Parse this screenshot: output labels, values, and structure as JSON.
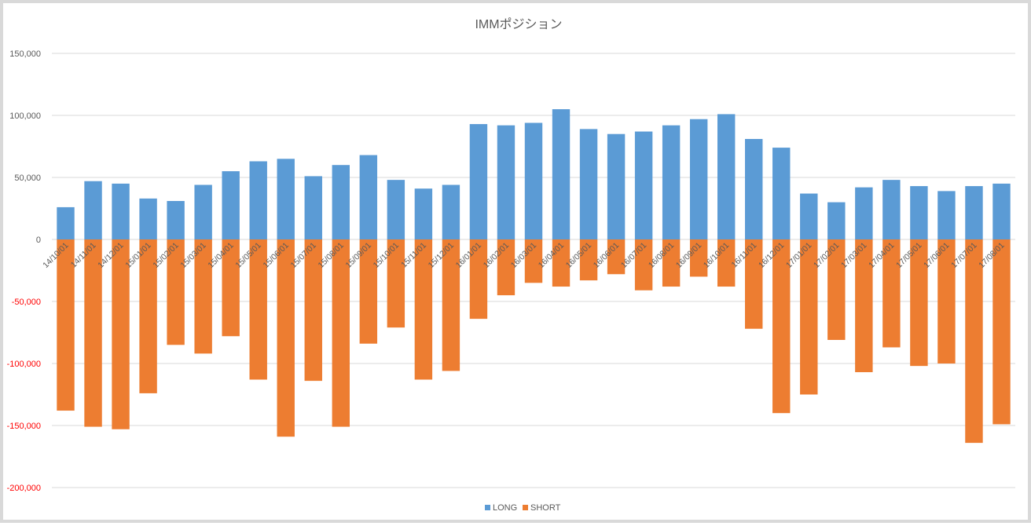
{
  "chart_data": {
    "type": "bar",
    "title": "IMMポジション",
    "xlabel": "",
    "ylabel": "",
    "ylim": [
      -200000,
      150000
    ],
    "yticks": [
      150000,
      100000,
      50000,
      0,
      -50000,
      -100000,
      -150000,
      -200000
    ],
    "ytick_labels": [
      "150,000",
      "100,000",
      "50,000",
      "0",
      "-50,000",
      "-100,000",
      "-150,000",
      "-200,000"
    ],
    "negative_tick_color": "#ff0000",
    "grid": true,
    "legend_position": "bottom",
    "categories": [
      "14/10/01",
      "14/11/01",
      "14/12/01",
      "15/01/01",
      "15/02/01",
      "15/03/01",
      "15/04/01",
      "15/05/01",
      "15/06/01",
      "15/07/01",
      "15/08/01",
      "15/09/01",
      "15/10/01",
      "15/11/01",
      "15/12/01",
      "16/01/01",
      "16/02/01",
      "16/03/01",
      "16/04/01",
      "16/05/01",
      "16/06/01",
      "16/07/01",
      "16/08/01",
      "16/09/01",
      "16/10/01",
      "16/11/01",
      "16/12/01",
      "17/01/01",
      "17/02/01",
      "17/03/01",
      "17/04/01",
      "17/05/01",
      "17/06/01",
      "17/07/01",
      "17/08/01"
    ],
    "series": [
      {
        "name": "LONG",
        "color": "#5b9bd5",
        "values": [
          26000,
          47000,
          45000,
          33000,
          31000,
          44000,
          55000,
          63000,
          65000,
          51000,
          60000,
          68000,
          48000,
          41000,
          44000,
          93000,
          92000,
          94000,
          105000,
          89000,
          85000,
          87000,
          92000,
          97000,
          101000,
          81000,
          74000,
          37000,
          30000,
          42000,
          48000,
          43000,
          39000,
          43000,
          45000
        ]
      },
      {
        "name": "SHORT",
        "color": "#ed7d31",
        "values": [
          -138000,
          -151000,
          -153000,
          -124000,
          -85000,
          -92000,
          -78000,
          -113000,
          -159000,
          -114000,
          -151000,
          -84000,
          -71000,
          -113000,
          -106000,
          -64000,
          -45000,
          -35000,
          -38000,
          -33000,
          -28000,
          -41000,
          -38000,
          -30000,
          -38000,
          -72000,
          -140000,
          -125000,
          -81000,
          -107000,
          -87000,
          -102000,
          -100000,
          -164000,
          -149000
        ]
      }
    ]
  }
}
